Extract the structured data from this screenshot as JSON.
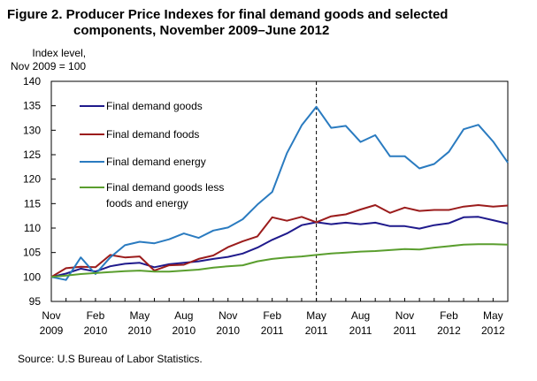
{
  "title": {
    "line1": "Figure 2. Producer Price Indexes for final  demand goods and selected",
    "line2": "components, November 2009–June 2012"
  },
  "source": "Source:  U.S Bureau of Labor Statistics.",
  "chart_data": {
    "type": "line",
    "ylabel_lines": [
      "Index level,",
      "Nov 2009 = 100"
    ],
    "ylim": [
      95,
      140
    ],
    "yticks": [
      95,
      100,
      105,
      110,
      115,
      120,
      125,
      130,
      135,
      140
    ],
    "x": [
      "Nov 2009",
      "Dec 2009",
      "Jan 2010",
      "Feb 2010",
      "Mar 2010",
      "Apr 2010",
      "May 2010",
      "Jun 2010",
      "Jul 2010",
      "Aug 2010",
      "Sep 2010",
      "Oct 2010",
      "Nov 2010",
      "Dec 2010",
      "Jan 2011",
      "Feb 2011",
      "Mar 2011",
      "Apr 2011",
      "May 2011",
      "Jun 2011",
      "Jul 2011",
      "Aug 2011",
      "Sep 2011",
      "Oct 2011",
      "Nov 2011",
      "Dec 2011",
      "Jan 2012",
      "Feb 2012",
      "Mar 2012",
      "Apr 2012",
      "May 2012",
      "Jun 2012"
    ],
    "xtick_labels": [
      {
        "month": "Nov",
        "year": "2009"
      },
      {
        "month": "Feb",
        "year": "2010"
      },
      {
        "month": "May",
        "year": "2010"
      },
      {
        "month": "Aug",
        "year": "2010"
      },
      {
        "month": "Nov",
        "year": "2010"
      },
      {
        "month": "Feb",
        "year": "2011"
      },
      {
        "month": "May",
        "year": "2011"
      },
      {
        "month": "Aug",
        "year": "2011"
      },
      {
        "month": "Nov",
        "year": "2011"
      },
      {
        "month": "Feb",
        "year": "2012"
      },
      {
        "month": "May",
        "year": "2012"
      }
    ],
    "reference_line": "May 2011",
    "legend_position": "top-left",
    "grid": false,
    "series": [
      {
        "name": "Final demand goods",
        "color": "#1f1a8c",
        "values": [
          100,
          100.7,
          101.7,
          101.1,
          102.2,
          102.7,
          102.9,
          102.0,
          102.6,
          102.9,
          103.2,
          103.7,
          104.1,
          104.8,
          106.0,
          107.6,
          108.9,
          110.6,
          111.2,
          110.8,
          111.1,
          110.8,
          111.1,
          110.4,
          110.4,
          109.9,
          110.6,
          111.0,
          112.2,
          112.3,
          111.6,
          110.9
        ]
      },
      {
        "name": "Final demand foods",
        "color": "#9b1c1c",
        "values": [
          100,
          101.8,
          102.1,
          102.0,
          104.5,
          104.0,
          104.2,
          101.3,
          102.4,
          102.5,
          103.7,
          104.4,
          106.1,
          107.3,
          108.3,
          112.2,
          111.5,
          112.3,
          111.2,
          112.4,
          112.8,
          113.8,
          114.7,
          113.1,
          114.2,
          113.5,
          113.7,
          113.7,
          114.4,
          114.7,
          114.4,
          114.6
        ]
      },
      {
        "name": "Final demand energy",
        "color": "#2a7bc0",
        "values": [
          100,
          99.4,
          104.0,
          100.6,
          104.0,
          106.5,
          107.2,
          106.9,
          107.7,
          108.9,
          108.0,
          109.5,
          110.1,
          111.8,
          114.8,
          117.4,
          125.3,
          131.0,
          134.8,
          130.5,
          130.9,
          127.6,
          129.0,
          124.7,
          124.7,
          122.2,
          123.1,
          125.6,
          130.2,
          131.1,
          127.7,
          123.4
        ]
      },
      {
        "name": "Final demand goods less foods and energy",
        "name_lines": [
          "Final demand goods less",
          "foods and energy"
        ],
        "color": "#5a9e2e",
        "values": [
          100,
          100.3,
          100.6,
          100.8,
          101.0,
          101.2,
          101.3,
          101.1,
          101.1,
          101.3,
          101.5,
          101.9,
          102.2,
          102.4,
          103.2,
          103.7,
          104.0,
          104.2,
          104.5,
          104.8,
          105.0,
          105.2,
          105.3,
          105.5,
          105.7,
          105.6,
          106.0,
          106.3,
          106.6,
          106.7,
          106.7,
          106.6
        ]
      }
    ]
  }
}
